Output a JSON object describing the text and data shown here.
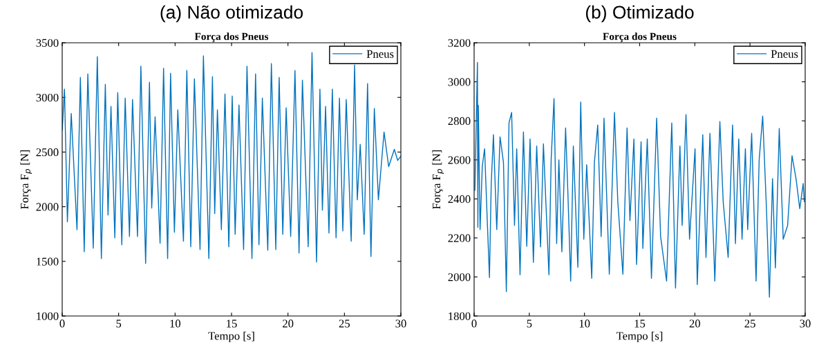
{
  "chart_data": [
    {
      "type": "line",
      "title": "(a) Não otimizado",
      "subtitle": "Força dos Pneus",
      "xlabel": "Tempo [s]",
      "ylabel": "Força F$_{p}$ [N]",
      "xlim": [
        0,
        30
      ],
      "ylim": [
        1000,
        3500
      ],
      "xticks": [
        0,
        5,
        10,
        15,
        20,
        25,
        30
      ],
      "yticks": [
        1000,
        1500,
        2000,
        2500,
        3000,
        3500
      ],
      "grid": false,
      "legend": "top right",
      "series": [
        {
          "name": "Pneus",
          "color": "#0072bd",
          "x": [
            0,
            0.2,
            0.46,
            0.8,
            1.31,
            1.61,
            1.95,
            2.27,
            2.75,
            3.11,
            3.47,
            3.82,
            4.06,
            4.32,
            4.66,
            4.92,
            5.28,
            5.58,
            5.96,
            6.23,
            6.67,
            6.97,
            7.39,
            7.73,
            7.93,
            8.23,
            8.67,
            8.98,
            9.34,
            9.6,
            9.94,
            10.24,
            10.74,
            11.04,
            11.39,
            11.71,
            12.21,
            12.51,
            12.99,
            13.31,
            13.51,
            13.75,
            14.1,
            14.42,
            14.76,
            15.06,
            15.32,
            15.66,
            16.07,
            16.37,
            16.81,
            17.13,
            17.43,
            17.73,
            18.21,
            18.53,
            18.92,
            19.22,
            19.54,
            19.84,
            20.24,
            20.62,
            20.98,
            21.28,
            21.79,
            22.13,
            22.53,
            22.83,
            23.05,
            23.33,
            23.63,
            23.93,
            24.26,
            24.56,
            24.86,
            25.16,
            25.6,
            25.9,
            26.14,
            26.4,
            26.75,
            27.05,
            27.35,
            27.65,
            28.01,
            28.51,
            28.92,
            29.42,
            29.72,
            30
          ],
          "values": [
            2700,
            3076,
            1862,
            2854,
            1790,
            3183,
            1588,
            3215,
            1620,
            3373,
            1525,
            3120,
            1924,
            2918,
            1715,
            3044,
            1652,
            2994,
            1728,
            2981,
            1728,
            3285,
            1481,
            3139,
            1987,
            2823,
            1665,
            3266,
            1525,
            3221,
            1766,
            2886,
            1684,
            3247,
            1633,
            3171,
            1607,
            3380,
            1525,
            3190,
            1937,
            2886,
            1790,
            3032,
            1633,
            3013,
            1747,
            2930,
            1607,
            3285,
            1525,
            3215,
            1652,
            2994,
            1601,
            3310,
            1607,
            3183,
            1747,
            2905,
            1728,
            3247,
            1576,
            3158,
            1633,
            3411,
            1494,
            3076,
            1968,
            2918,
            1759,
            3076,
            1715,
            2994,
            1778,
            2981,
            1684,
            3297,
            2063,
            2570,
            1747,
            3127,
            1544,
            2899,
            2063,
            2683,
            2367,
            2525,
            2424,
            2462
          ]
        }
      ]
    },
    {
      "type": "line",
      "title": "(b) Otimizado",
      "subtitle": "Força dos Pneus",
      "xlabel": "Tempo [s]",
      "ylabel": "Força F$_{p}$ [N]",
      "xlim": [
        0,
        30
      ],
      "ylim": [
        1800,
        3200
      ],
      "xticks": [
        0,
        5,
        10,
        15,
        20,
        25,
        30
      ],
      "yticks": [
        1800,
        2000,
        2200,
        2400,
        2600,
        2800,
        3000,
        3200
      ],
      "grid": false,
      "legend": "top right",
      "series": [
        {
          "name": "Pneus",
          "color": "#0072bd",
          "x": [
            0.07,
            0.3,
            0.34,
            0.38,
            0.54,
            0.74,
            0.95,
            1.15,
            1.39,
            1.55,
            1.75,
            2.05,
            2.35,
            2.66,
            2.92,
            3.16,
            3.4,
            3.66,
            3.86,
            4.16,
            4.47,
            4.77,
            5.07,
            5.37,
            5.67,
            6.02,
            6.28,
            6.78,
            6.98,
            7.24,
            7.48,
            7.68,
            7.95,
            8.29,
            8.49,
            8.75,
            8.99,
            9.4,
            9.66,
            9.94,
            10.2,
            10.66,
            10.9,
            11.2,
            11.51,
            11.77,
            12.25,
            12.72,
            13.02,
            13.48,
            13.86,
            14.12,
            14.48,
            14.72,
            15.13,
            15.29,
            15.69,
            16.07,
            16.54,
            16.9,
            17.44,
            17.91,
            18.25,
            18.65,
            18.85,
            19.2,
            19.52,
            20.02,
            20.22,
            20.72,
            21.01,
            21.37,
            21.81,
            22.27,
            22.57,
            23.02,
            23.42,
            23.68,
            23.98,
            24.28,
            24.58,
            24.79,
            25.15,
            25.55,
            25.83,
            26.15,
            26.5,
            26.76,
            27.04,
            27.3,
            27.65,
            28.01,
            28.41,
            28.81,
            29.17,
            29.51,
            29.82,
            29.92
          ],
          "values": [
            2444,
            3099,
            2254,
            2879,
            2243,
            2568,
            2657,
            2350,
            1997,
            2479,
            2729,
            2243,
            2718,
            2586,
            1925,
            2789,
            2843,
            2264,
            2657,
            2011,
            2743,
            2157,
            2707,
            2075,
            2671,
            2154,
            2682,
            2011,
            2600,
            2914,
            2171,
            2600,
            2129,
            2764,
            2443,
            1979,
            2671,
            2050,
            2896,
            2193,
            2575,
            1993,
            2586,
            2779,
            2207,
            2814,
            2014,
            2843,
            2386,
            2014,
            2764,
            2289,
            2707,
            2064,
            2693,
            2146,
            2707,
            1993,
            2814,
            2207,
            1979,
            2789,
            1943,
            2671,
            2264,
            2832,
            2193,
            2657,
            1961,
            2729,
            2100,
            2736,
            1979,
            2796,
            2386,
            2100,
            2779,
            2171,
            2707,
            2193,
            2657,
            2243,
            2736,
            1979,
            2600,
            2825,
            2336,
            1896,
            2504,
            2046,
            2761,
            2193,
            2264,
            2621,
            2504,
            2350,
            2479,
            2386
          ]
        }
      ]
    }
  ]
}
